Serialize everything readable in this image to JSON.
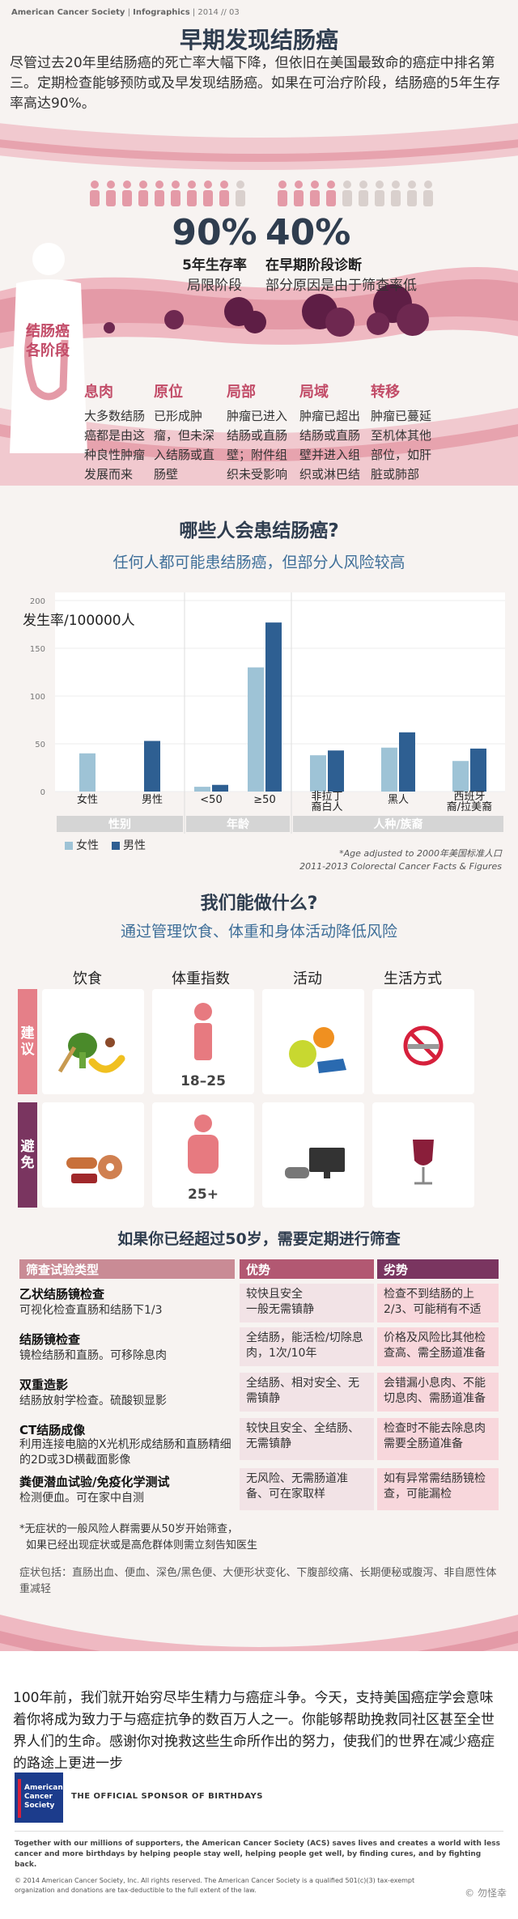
{
  "header": {
    "org": "American Cancer Society",
    "section": "Infographics",
    "year": "2014",
    "issue": "03",
    "title": "早期发现结肠癌",
    "intro": "尽管过去20年里结肠癌的死亡率大幅下降，但依旧在美国最致命的癌症中排名第三。定期检查能够预防或及早发现结肠癌。如果在可治疗阶段，结肠癌的5年生存率高达90%。"
  },
  "stats": [
    {
      "value": 0.9,
      "pct": "90%",
      "line1": "5年生存率",
      "line2": "局限阶段",
      "color": "#e0a7b3"
    },
    {
      "value": 0.4,
      "pct": "40%",
      "line1": "在早期阶段诊断",
      "line2": "部分原因是由于筛查率低",
      "color": "#e0a7b3"
    }
  ],
  "stages": {
    "heading": "结肠癌\n各阶段",
    "items": [
      {
        "name": "息肉",
        "desc": "大多数结肠癌都是由这种良性肿瘤发展而来"
      },
      {
        "name": "原位",
        "desc": "已形成肿瘤，但未深入结肠或直肠壁"
      },
      {
        "name": "局部",
        "desc": "肿瘤已进入结肠或直肠壁；附件组织未受影响"
      },
      {
        "name": "局域",
        "desc": "肿瘤已超出结肠或直肠壁并进入组织或淋巴结"
      },
      {
        "name": "转移",
        "desc": "肿瘤已蔓延至机体其他部位，如肝脏或肺部"
      }
    ]
  },
  "who": {
    "title": "哪些人会患结肠癌?",
    "subtitle": "任何人都可能患结肠癌，但部分人风险较高"
  },
  "chart_data": {
    "type": "bar",
    "ylabel": "发生率/100000人",
    "ylim": [
      0,
      200
    ],
    "yticks": [
      0,
      50,
      100,
      150,
      200
    ],
    "groups": [
      {
        "label": "性别",
        "categories": [
          "女性",
          "男性"
        ],
        "values": [
          40,
          53
        ]
      },
      {
        "label": "年龄",
        "categories": [
          "<50",
          "≥50"
        ],
        "values": [
          [
            5,
            7
          ],
          [
            130,
            177
          ]
        ]
      },
      {
        "label": "人种/族裔",
        "categories": [
          "非拉丁裔白人",
          "黑人",
          "西班牙裔/拉美裔"
        ],
        "values": [
          [
            38,
            43
          ],
          [
            46,
            62
          ],
          [
            32,
            45
          ]
        ]
      }
    ],
    "series": [
      {
        "name": "女性",
        "color": "#9ec3d6"
      },
      {
        "name": "男性",
        "color": "#2e5f92"
      }
    ],
    "legend_position": "bottom-left",
    "note1": "*Age adjusted to 2000年美国标准人口",
    "note2": "2011-2013 Colorectal Cancer Facts & Figures"
  },
  "todo": {
    "title": "我们能做什么?",
    "subtitle": "通过管理饮食、体重和身体活动降低风险",
    "columns": [
      "饮食",
      "体重指数",
      "活动",
      "生活方式"
    ],
    "rows": [
      {
        "tag": "建议",
        "color": "#e57f88",
        "bmi": "18–25"
      },
      {
        "tag": "避免",
        "color": "#7a3560",
        "bmi": "25+"
      }
    ]
  },
  "screening": {
    "title": "如果你已经超过50岁，需要定期进行筛查",
    "headers": [
      "筛查试验类型",
      "优势",
      "劣势"
    ],
    "tests": [
      {
        "name": "乙状结肠镜检查",
        "desc": "可视化检查直肠和结肠下1/3",
        "pro": "较快且安全\n一般无需镇静",
        "con": "检查不到结肠的上2/3、可能稍有不适"
      },
      {
        "name": "结肠镜检查",
        "desc": "镜检结肠和直肠。可移除息肉",
        "pro": "全结肠，能活检/切除息肉，1次/10年",
        "con": "价格及风险比其他检查高、需全肠道准备"
      },
      {
        "name": "双重造影",
        "desc": "结肠放射学检查。硫酸钡显影",
        "pro": "全结肠、相对安全、无需镇静",
        "con": "会错漏小息肉、不能切息肉、需肠道准备"
      },
      {
        "name": "CT结肠成像",
        "desc": "利用连接电脑的X光机形成结肠和直肠精细的2D或3D横截面影像",
        "pro": "较快且安全、全结肠、无需镇静",
        "con": "检查时不能去除息肉需要全肠道准备"
      },
      {
        "name": "粪便潜血试验/免疫化学测试",
        "desc": "检测便血。可在家中自测",
        "pro": "无风险、无需肠道准备、可在家取样",
        "con": "如有异常需结肠镜检查，可能漏检"
      }
    ],
    "note1": "*无症状的一般风险人群需要从50岁开始筛查，",
    "note2": "如果已经出现症状或是高危群体则需立刻告知医生",
    "symptoms": "症状包括：直肠出血、便血、深色/黑色便、大便形状变化、下腹部绞痛、长期便秘或腹泻、非自愿性体重减轻"
  },
  "closing": "100年前，我们就开始穷尽毕生精力与癌症斗争。今天，支持美国癌症学会意味着你将成为致力于与癌症抗争的数百万人之一。你能够帮助挽救同社区甚至全世界人们的生命。感谢你对挽救这些生命所作出的努力，使我们的世界在减少癌症的路途上更进一步",
  "footer": {
    "logo": "American Cancer Society",
    "sponsor": "THE OFFICIAL SPONSOR OF BIRTHDAYS",
    "mission": "Together with our millions of supporters, the American Cancer Society (ACS) saves lives and creates a world with less cancer and more birthdays by helping people stay well, helping people get well, by finding cures, and by fighting back.",
    "legal": "© 2014 American Cancer Society, Inc. All rights reserved. The American Cancer Society is a qualified 501(c)(3) tax-exempt organization and donations are tax-deductible to the full extent of the law.",
    "watermark": "© 勿怪幸"
  }
}
